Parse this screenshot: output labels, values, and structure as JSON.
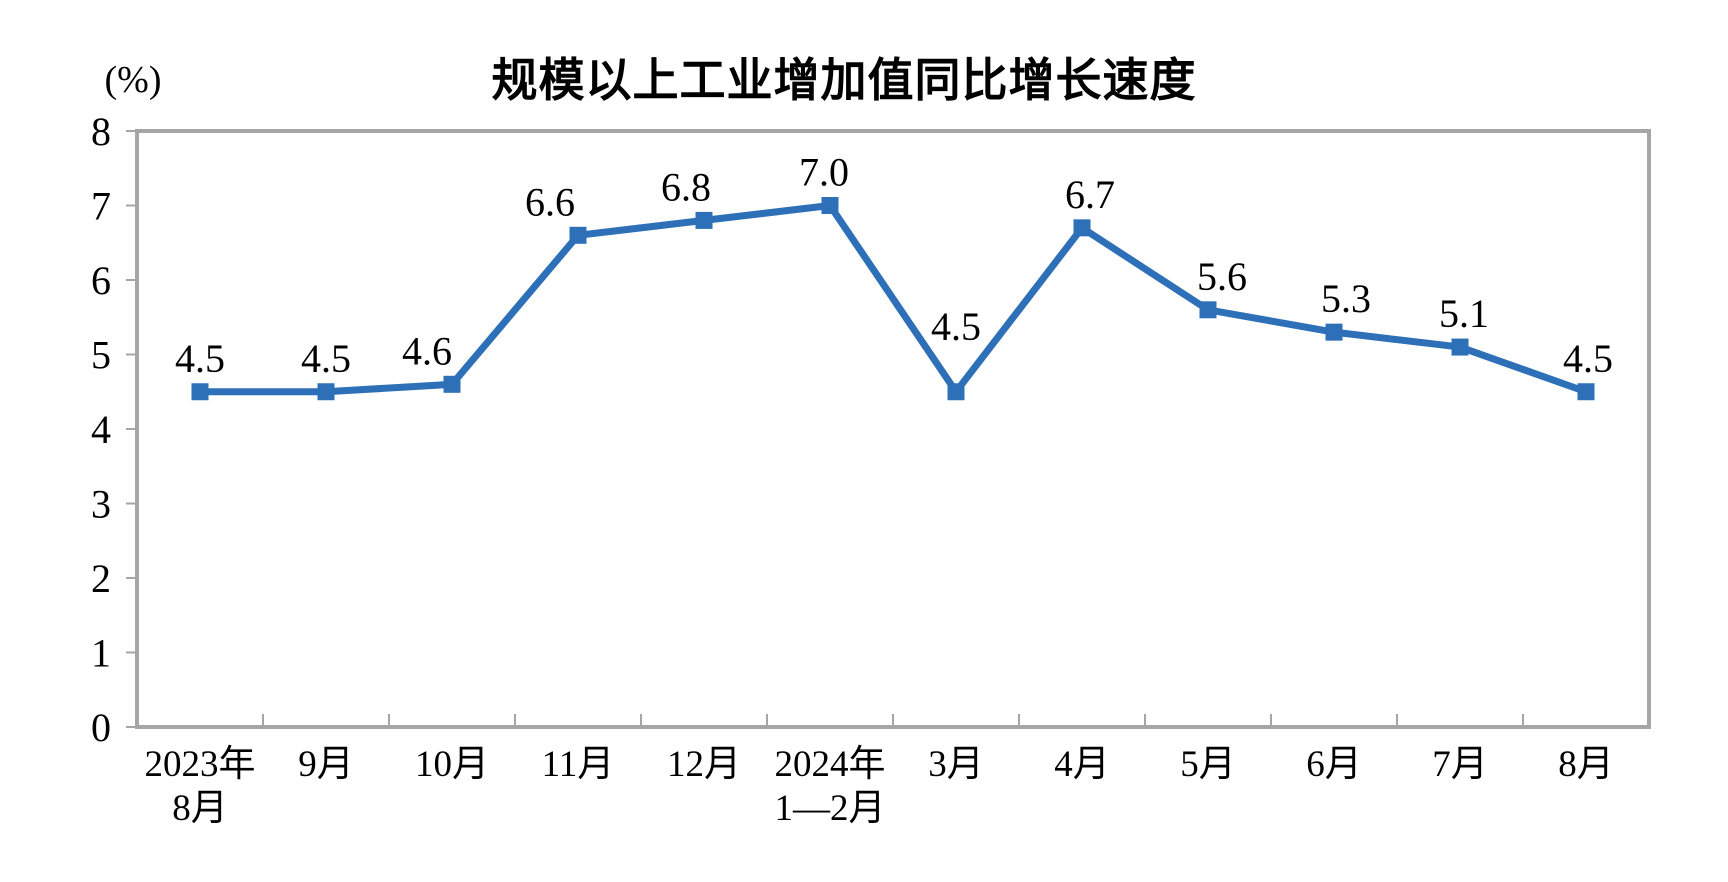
{
  "chart_data": {
    "type": "line",
    "title": "规模以上工业增加值同比增长速度",
    "ylabel": "(%)",
    "xlabel": "",
    "categories": [
      [
        "2023年",
        "8月"
      ],
      [
        "9月"
      ],
      [
        "10月"
      ],
      [
        "11月"
      ],
      [
        "12月"
      ],
      [
        "2024年",
        "1—2月"
      ],
      [
        "3月"
      ],
      [
        "4月"
      ],
      [
        "5月"
      ],
      [
        "6月"
      ],
      [
        "7月"
      ],
      [
        "8月"
      ]
    ],
    "series": [
      {
        "name": "规模以上工业增加值同比增长速度",
        "values": [
          4.5,
          4.5,
          4.6,
          6.6,
          6.8,
          7.0,
          4.5,
          6.7,
          5.6,
          5.3,
          5.1,
          4.5
        ],
        "point_labels": [
          "4.5",
          "4.5",
          "4.6",
          "6.6",
          "6.8",
          "7.0",
          "4.5",
          "6.7",
          "5.6",
          "5.3",
          "5.1",
          "4.5"
        ]
      }
    ],
    "ylim": [
      0,
      8
    ],
    "yticks": [
      "0",
      "1",
      "2",
      "3",
      "4",
      "5",
      "6",
      "7",
      "8"
    ],
    "grid": "off",
    "legend": "none",
    "marker": "square",
    "colors": {
      "line": "#2E70B8",
      "marker": "#2E70B8",
      "plot_border": "#A6A6A6",
      "tick": "#A6A6A6",
      "text": "#000000",
      "background": "#FFFFFF"
    },
    "label_dx": [
      0,
      0,
      -25,
      -28,
      -18,
      -6,
      0,
      8,
      14,
      12,
      4,
      2
    ],
    "label_dy": [
      0,
      0,
      0,
      0,
      0,
      0,
      -32,
      0,
      0,
      0,
      0,
      0
    ]
  }
}
